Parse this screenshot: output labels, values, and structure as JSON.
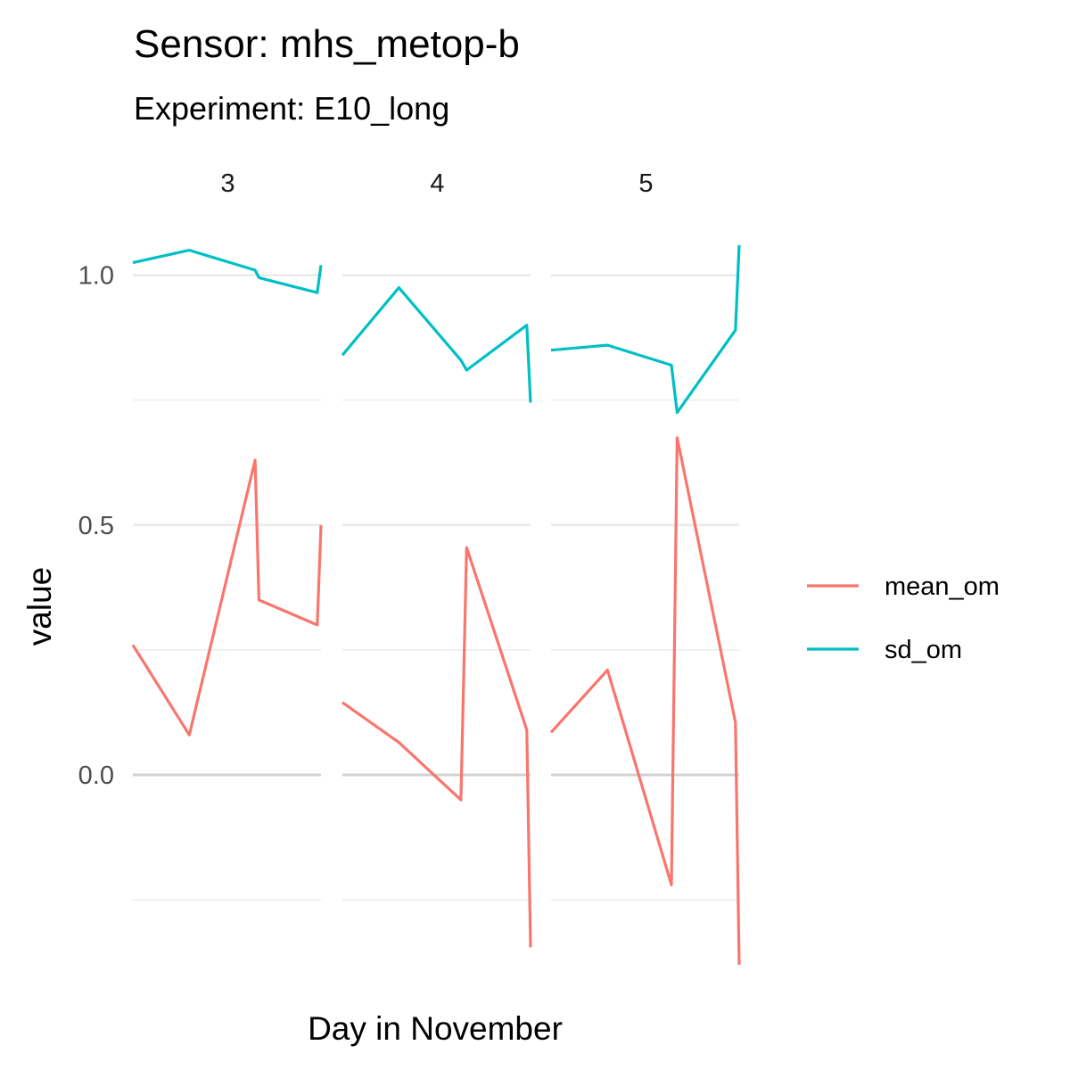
{
  "chart_data": {
    "type": "line",
    "title": "Sensor: mhs_metop-b",
    "subtitle": "Experiment: E10_long",
    "xlabel": "Day in November",
    "ylabel": "value",
    "ylim": [
      -0.38,
      1.06
    ],
    "y_ticks": [
      "0.0",
      "0.5",
      "1.0"
    ],
    "grid": true,
    "legend_position": "right",
    "facets": [
      {
        "label": "3",
        "series": [
          {
            "name": "mean_om",
            "color": "#F8766D",
            "x": [
              0,
              0.3,
              0.65,
              0.67,
              0.98,
              1.0
            ],
            "values": [
              0.26,
              0.08,
              0.63,
              0.35,
              0.3,
              0.5
            ]
          },
          {
            "name": "sd_om",
            "color": "#00BFC4",
            "x": [
              0,
              0.3,
              0.65,
              0.67,
              0.98,
              1.0
            ],
            "values": [
              1.025,
              1.05,
              1.01,
              0.995,
              0.965,
              1.02
            ]
          }
        ]
      },
      {
        "label": "4",
        "series": [
          {
            "name": "mean_om",
            "color": "#F8766D",
            "x": [
              0,
              0.3,
              0.63,
              0.66,
              0.98,
              1.0
            ],
            "values": [
              0.145,
              0.065,
              -0.05,
              0.455,
              0.09,
              -0.345
            ]
          },
          {
            "name": "sd_om",
            "color": "#00BFC4",
            "x": [
              0,
              0.3,
              0.63,
              0.66,
              0.98,
              1.0
            ],
            "values": [
              0.84,
              0.975,
              0.83,
              0.81,
              0.9,
              0.745
            ]
          }
        ]
      },
      {
        "label": "5",
        "series": [
          {
            "name": "mean_om",
            "color": "#F8766D",
            "x": [
              0,
              0.3,
              0.64,
              0.67,
              0.98,
              1.0
            ],
            "values": [
              0.085,
              0.21,
              -0.22,
              0.675,
              0.105,
              -0.38
            ]
          },
          {
            "name": "sd_om",
            "color": "#00BFC4",
            "x": [
              0,
              0.3,
              0.64,
              0.67,
              0.98,
              1.0
            ],
            "values": [
              0.85,
              0.86,
              0.82,
              0.725,
              0.89,
              1.06
            ]
          }
        ]
      }
    ],
    "legend": [
      {
        "label": "mean_om",
        "color": "#F8766D"
      },
      {
        "label": "sd_om",
        "color": "#00BFC4"
      }
    ]
  }
}
